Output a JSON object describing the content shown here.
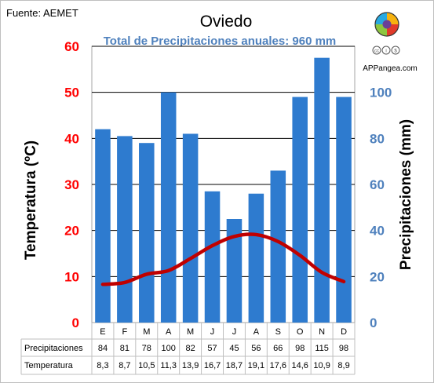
{
  "source": "Fuente: AEMET",
  "brand": "APPangea.com",
  "cc_icons": [
    "cc",
    "by",
    "nc"
  ],
  "colors": {
    "bars": "#2e7bcf",
    "temp_line": "#c00000",
    "left_axis": "#ff0000",
    "right_axis": "#4f81bd",
    "subtitle": "#4f81bd",
    "axis_title": "#000000",
    "logo_segments": [
      "#f6b20f",
      "#e13a2a",
      "#8dc63f",
      "#27a9e1",
      "#6b3f97"
    ]
  },
  "chart_data": {
    "type": "bar",
    "title": "Oviedo",
    "subtitle": "Total de Precipitaciones anuales: 960 mm",
    "categories": [
      "E",
      "F",
      "M",
      "A",
      "M",
      "J",
      "J",
      "A",
      "S",
      "O",
      "N",
      "D"
    ],
    "series": [
      {
        "name": "Precipitaciones",
        "type": "bar",
        "axis": "right",
        "values": [
          84,
          81,
          78,
          100,
          82,
          57,
          45,
          56,
          66,
          98,
          115,
          98
        ],
        "labels": [
          "84",
          "81",
          "78",
          "100",
          "82",
          "57",
          "45",
          "56",
          "66",
          "98",
          "115",
          "98"
        ]
      },
      {
        "name": "Temperatura",
        "type": "line",
        "axis": "left",
        "values": [
          8.3,
          8.7,
          10.5,
          11.3,
          13.9,
          16.7,
          18.7,
          19.1,
          17.6,
          14.6,
          10.9,
          8.9
        ],
        "labels": [
          "8,3",
          "8,7",
          "10,5",
          "11,3",
          "13,9",
          "16,7",
          "18,7",
          "19,1",
          "17,6",
          "14,6",
          "10,9",
          "8,9"
        ]
      }
    ],
    "ylabel_left": "Temperatura (ºC)",
    "ylabel_right": "Precipitaciones (mm)",
    "ylim_left": [
      0,
      60
    ],
    "ylim_right": [
      0,
      120
    ],
    "yticks_left": [
      0,
      10,
      20,
      30,
      40,
      50,
      60
    ],
    "yticks_right": [
      0,
      20,
      40,
      60,
      80,
      100
    ],
    "grid": true,
    "legend": "table-below"
  }
}
